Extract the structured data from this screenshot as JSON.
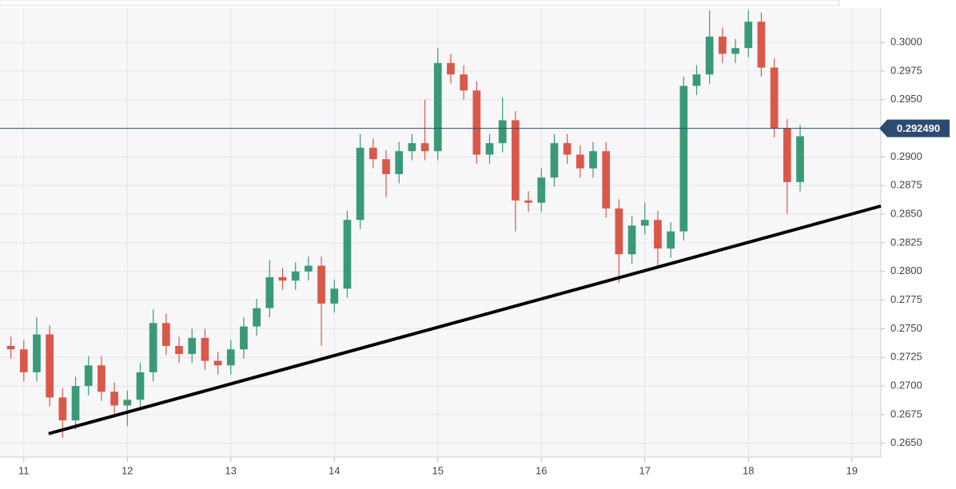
{
  "chart_data": {
    "type": "candlestick",
    "x": [
      10.875,
      11.0,
      11.125,
      11.25,
      11.375,
      11.5,
      11.625,
      11.75,
      11.875,
      12.0,
      12.125,
      12.25,
      12.375,
      12.5,
      12.625,
      12.75,
      12.875,
      13.0,
      13.125,
      13.25,
      13.375,
      13.5,
      13.625,
      13.75,
      13.875,
      14.0,
      14.125,
      14.25,
      14.375,
      14.5,
      14.625,
      14.75,
      14.875,
      15.0,
      15.125,
      15.25,
      15.375,
      15.5,
      15.625,
      15.75,
      15.875,
      16.0,
      16.125,
      16.25,
      16.375,
      16.5,
      16.625,
      16.75,
      16.875,
      17.0,
      17.125,
      17.25,
      17.375,
      17.5,
      17.625,
      17.75,
      17.875,
      18.0,
      18.125,
      18.25,
      18.375,
      18.5
    ],
    "open": [
      0.2735,
      0.2732,
      0.2712,
      0.2745,
      0.269,
      0.267,
      0.27,
      0.2718,
      0.2695,
      0.2683,
      0.2688,
      0.2712,
      0.2755,
      0.2735,
      0.2728,
      0.2742,
      0.2722,
      0.2718,
      0.2732,
      0.2752,
      0.2768,
      0.2795,
      0.2792,
      0.28,
      0.2805,
      0.2772,
      0.2785,
      0.2845,
      0.2908,
      0.2898,
      0.2885,
      0.2905,
      0.2912,
      0.2905,
      0.2982,
      0.2972,
      0.2958,
      0.2902,
      0.2912,
      0.2932,
      0.2862,
      0.286,
      0.2882,
      0.2912,
      0.2902,
      0.289,
      0.2905,
      0.2855,
      0.2815,
      0.284,
      0.2845,
      0.282,
      0.2835,
      0.2962,
      0.2972,
      0.3005,
      0.299,
      0.2995,
      0.3018,
      0.2978,
      0.2925,
      0.2878
    ],
    "high": [
      0.2743,
      0.274,
      0.276,
      0.2753,
      0.2698,
      0.2708,
      0.2726,
      0.2726,
      0.2703,
      0.2696,
      0.272,
      0.2767,
      0.2763,
      0.2743,
      0.275,
      0.275,
      0.273,
      0.274,
      0.276,
      0.2776,
      0.281,
      0.2803,
      0.2808,
      0.2813,
      0.2813,
      0.2793,
      0.2853,
      0.292,
      0.2916,
      0.2906,
      0.2913,
      0.292,
      0.295,
      0.2995,
      0.299,
      0.298,
      0.2966,
      0.292,
      0.2952,
      0.294,
      0.287,
      0.289,
      0.292,
      0.292,
      0.291,
      0.2913,
      0.2913,
      0.2863,
      0.2848,
      0.286,
      0.2853,
      0.2843,
      0.297,
      0.298,
      0.3028,
      0.3013,
      0.3003,
      0.3028,
      0.3026,
      0.2986,
      0.2933,
      0.2928
    ],
    "low": [
      0.2724,
      0.2704,
      0.2704,
      0.2682,
      0.2655,
      0.2662,
      0.2692,
      0.2687,
      0.2675,
      0.2665,
      0.268,
      0.2704,
      0.2727,
      0.272,
      0.272,
      0.2714,
      0.271,
      0.271,
      0.2724,
      0.2744,
      0.276,
      0.2784,
      0.2784,
      0.2792,
      0.2735,
      0.2764,
      0.2777,
      0.2837,
      0.289,
      0.2865,
      0.2877,
      0.2897,
      0.2897,
      0.2897,
      0.2964,
      0.295,
      0.2894,
      0.2894,
      0.2904,
      0.2835,
      0.2852,
      0.2852,
      0.2874,
      0.2894,
      0.2882,
      0.2882,
      0.2847,
      0.279,
      0.2807,
      0.2832,
      0.2805,
      0.2812,
      0.2827,
      0.2954,
      0.2964,
      0.2982,
      0.2982,
      0.2987,
      0.297,
      0.2917,
      0.285,
      0.287
    ],
    "close": [
      0.2732,
      0.2712,
      0.2745,
      0.269,
      0.267,
      0.27,
      0.2718,
      0.2695,
      0.2683,
      0.2688,
      0.2712,
      0.2755,
      0.2735,
      0.2728,
      0.2742,
      0.2722,
      0.2718,
      0.2732,
      0.2752,
      0.2768,
      0.2795,
      0.2792,
      0.28,
      0.2805,
      0.2772,
      0.2785,
      0.2845,
      0.2908,
      0.2898,
      0.2885,
      0.2905,
      0.2912,
      0.2905,
      0.2982,
      0.2972,
      0.2958,
      0.2902,
      0.2912,
      0.2932,
      0.2862,
      0.286,
      0.2882,
      0.2912,
      0.2902,
      0.289,
      0.2905,
      0.2855,
      0.2815,
      0.284,
      0.2845,
      0.282,
      0.2835,
      0.2962,
      0.2972,
      0.3005,
      0.299,
      0.2995,
      0.3018,
      0.2978,
      0.2925,
      0.2878,
      0.2918
    ],
    "up_color": "#3a9a78",
    "down_color": "#d9584a",
    "xlim": [
      10.77,
      19.28
    ],
    "xticks": [
      11,
      12,
      13,
      14,
      15,
      16,
      17,
      18,
      19
    ],
    "ylim": [
      0.2638,
      0.303
    ],
    "yticks": [
      {
        "value": 0.265,
        "label": "0.2650"
      },
      {
        "value": 0.2675,
        "label": "0.2675"
      },
      {
        "value": 0.27,
        "label": "0.2700"
      },
      {
        "value": 0.2725,
        "label": "0.2725"
      },
      {
        "value": 0.275,
        "label": "0.2750"
      },
      {
        "value": 0.2775,
        "label": "0.2775"
      },
      {
        "value": 0.28,
        "label": "0.2800"
      },
      {
        "value": 0.2825,
        "label": "0.2825"
      },
      {
        "value": 0.285,
        "label": "0.2850"
      },
      {
        "value": 0.2875,
        "label": "0.2875"
      },
      {
        "value": 0.29,
        "label": "0.2900"
      },
      {
        "value": 0.2925,
        "label": "0.2925"
      },
      {
        "value": 0.295,
        "label": "0.2950"
      },
      {
        "value": 0.2975,
        "label": "0.2975"
      },
      {
        "value": 0.3,
        "label": "0.3000"
      }
    ],
    "grid": true,
    "current_price": {
      "value": 0.29249,
      "label": "0.292490",
      "color": "#2d4b70"
    },
    "trendline": {
      "x": [
        11.24,
        19.28
      ],
      "y": [
        0.26584,
        0.28571
      ],
      "color": "#000000"
    }
  }
}
